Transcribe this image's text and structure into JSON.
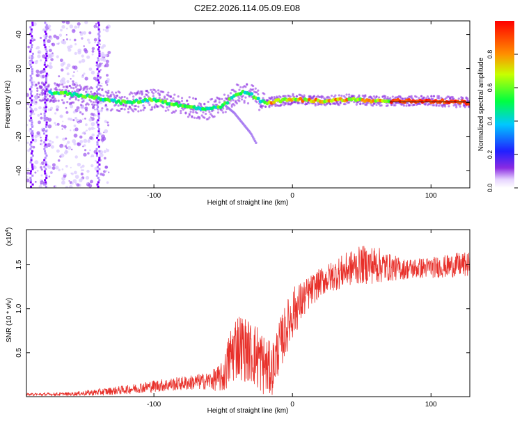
{
  "title": "C2E2.2026.114.05.09.E08",
  "colors": {
    "trace": "#e8302a",
    "spectrum_low": "#7b00ff",
    "spectrum_high": "#ff0000",
    "frame": "#000000"
  },
  "chart_data": [
    {
      "type": "heatmap",
      "title": "C2E2.2026.114.05.09.E08",
      "xlabel": "Height of straight line (km)",
      "ylabel": "Frequency (Hz)",
      "xlim": [
        -192,
        128
      ],
      "ylim": [
        -50,
        48
      ],
      "xticks": [
        -100,
        0,
        100
      ],
      "yticks": [
        -40,
        -20,
        0,
        20,
        40
      ],
      "xtick_labels": [
        "-100",
        "0",
        "100"
      ],
      "ytick_labels": [
        "-40",
        "-20",
        "0",
        "20",
        "40"
      ],
      "colorbar": {
        "label": "Normalized spectral amplitude",
        "range": [
          0,
          1
        ],
        "ticks": [
          0.0,
          0.2,
          0.4,
          0.6,
          0.8
        ],
        "tick_labels": [
          "0.0",
          "0.2",
          "0.4",
          "0.6",
          "0.8"
        ]
      },
      "ridge": {
        "x": [
          -170,
          -160,
          -150,
          -140,
          -130,
          -120,
          -110,
          -100,
          -90,
          -80,
          -70,
          -60,
          -50,
          -45,
          -40,
          -35,
          -30,
          -25,
          -20,
          -10,
          0,
          20,
          40,
          60,
          80,
          100,
          128
        ],
        "y": [
          6,
          5,
          4,
          3,
          1,
          0,
          1,
          2,
          0,
          -2,
          -3,
          -4,
          -2,
          2,
          5,
          6,
          5,
          2,
          0,
          1,
          2,
          1,
          2,
          1,
          1,
          1,
          0
        ]
      },
      "branch": {
        "x": [
          -48,
          -42,
          -36,
          -30,
          -26
        ],
        "y": [
          -2,
          -6,
          -12,
          -18,
          -24
        ]
      },
      "streaks": [
        {
          "x": -188,
          "y0": -50,
          "y1": 48
        },
        {
          "x": -178,
          "y0": -50,
          "y1": 48
        },
        {
          "x": -140,
          "y0": -50,
          "y1": 48
        }
      ]
    },
    {
      "type": "line",
      "xlabel": "Height of straight line (km)",
      "ylabel": "SNR (10 * v/v)",
      "y_multiplier": "(x10",
      "y_multiplier_exp": "4",
      "xlim": [
        -192,
        128
      ],
      "ylim": [
        0,
        1.9
      ],
      "xticks": [
        -100,
        0,
        100
      ],
      "yticks": [
        0.5,
        1.0,
        1.5
      ],
      "xtick_labels": [
        "-100",
        "0",
        "100"
      ],
      "ytick_labels": [
        "0.5",
        "1.0",
        "1.5"
      ],
      "series": [
        {
          "x": [
            -192,
            -160,
            -140,
            -120,
            -100,
            -80,
            -60,
            -50,
            -45,
            -40,
            -35,
            -30,
            -25,
            -20,
            -15,
            -10,
            0,
            10,
            20,
            30,
            40,
            50,
            60,
            70,
            80,
            90,
            100,
            110,
            120,
            128
          ],
          "values": [
            0.02,
            0.03,
            0.05,
            0.08,
            0.12,
            0.15,
            0.18,
            0.22,
            0.45,
            0.6,
            0.55,
            0.5,
            0.45,
            0.35,
            0.3,
            0.55,
            0.95,
            1.15,
            1.3,
            1.38,
            1.45,
            1.5,
            1.5,
            1.47,
            1.45,
            1.46,
            1.47,
            1.48,
            1.5,
            1.5
          ],
          "noise_amplitude": [
            0.02,
            0.02,
            0.04,
            0.05,
            0.07,
            0.08,
            0.1,
            0.18,
            0.35,
            0.4,
            0.38,
            0.35,
            0.4,
            0.35,
            0.3,
            0.3,
            0.3,
            0.2,
            0.16,
            0.18,
            0.2,
            0.22,
            0.22,
            0.16,
            0.12,
            0.12,
            0.12,
            0.13,
            0.14,
            0.14
          ]
        }
      ]
    }
  ]
}
